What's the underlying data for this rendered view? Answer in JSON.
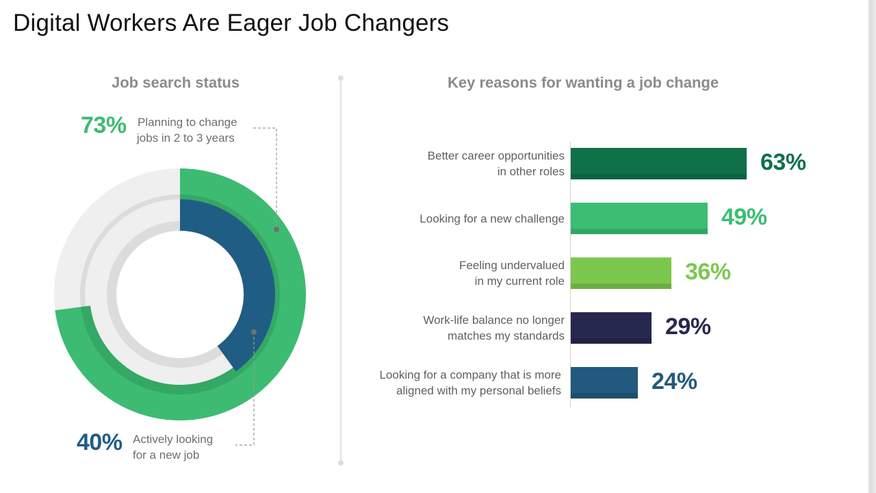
{
  "title": "Digital Workers Are Eager Job Changers",
  "chart_data": [
    {
      "type": "donut",
      "title": "Job search status",
      "series": [
        {
          "label": "Planning to change jobs in 2 to 3 years",
          "value": 73,
          "display": "73%",
          "color": "#3dbb72"
        },
        {
          "label": "Actively looking for a new job",
          "value": 40,
          "display": "40%",
          "color": "#205d84"
        }
      ],
      "max": 100
    },
    {
      "type": "bar",
      "orientation": "horizontal",
      "title": "Key reasons for wanting a job change",
      "categories": [
        "Better career opportunities in other roles",
        "Looking for a new challenge",
        "Feeling undervalued in my current role",
        "Work-life balance no longer matches my standards",
        "Looking for a company that is more aligned with my personal beliefs"
      ],
      "values": [
        63,
        49,
        36,
        29,
        24
      ],
      "labels": [
        "63%",
        "49%",
        "36%",
        "29%",
        "24%"
      ],
      "colors": [
        "#0f704a",
        "#3bbd73",
        "#7cc84f",
        "#26284e",
        "#22597e"
      ],
      "xlim": [
        0,
        100
      ]
    }
  ],
  "left": {
    "planning": {
      "value": "73%",
      "label_line1": "Planning to change",
      "label_line2": "jobs in 2 to 3 years"
    },
    "active": {
      "value": "40%",
      "label_line1": "Actively looking",
      "label_line2": "for a new job"
    }
  },
  "bars": [
    {
      "line1": "Better career opportunities",
      "line2": "in other roles"
    },
    {
      "line1": "Looking for a new challenge",
      "line2": ""
    },
    {
      "line1": "Feeling undervalued",
      "line2": "in my current role"
    },
    {
      "line1": "Work-life balance no longer",
      "line2": "matches my standards"
    },
    {
      "line1": "Looking for a company that is more",
      "line2": "aligned with my personal beliefs"
    }
  ]
}
